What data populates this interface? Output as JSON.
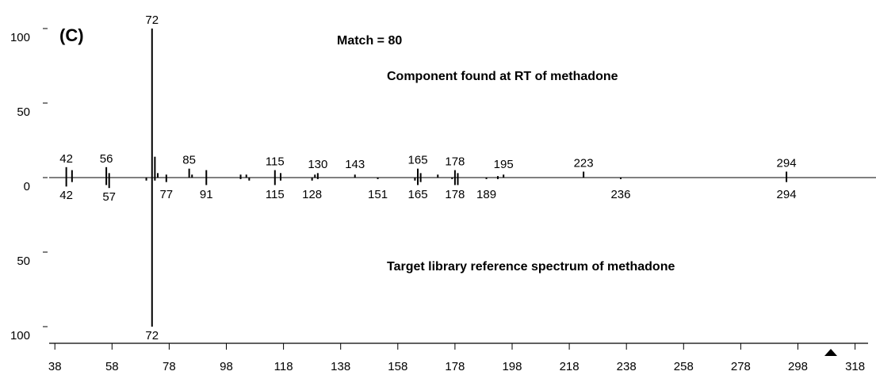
{
  "chart_data": {
    "type": "spectrum",
    "panel_label": "(C)",
    "annotations": [
      "Match = 80",
      "Component found at RT of methadone",
      "Target library reference spectrum of methadone"
    ],
    "xlim": [
      36,
      322
    ],
    "xticks": [
      38,
      58,
      78,
      98,
      118,
      138,
      158,
      178,
      198,
      218,
      238,
      258,
      278,
      298,
      318
    ],
    "ylim": [
      -100,
      100
    ],
    "yticks": [
      100,
      50,
      0,
      {
        "value": -50,
        "label": "50"
      },
      {
        "value": -100,
        "label": "100"
      }
    ],
    "color": "#000000",
    "series": [
      {
        "x": [
          42,
          44,
          56,
          57,
          72,
          73,
          74,
          77,
          85,
          86,
          91,
          103,
          105,
          115,
          117,
          129,
          130,
          143,
          165,
          166,
          172,
          178,
          179,
          193,
          195,
          223,
          294
        ],
        "values": [
          7,
          5,
          7,
          3,
          100,
          14,
          3,
          2,
          6,
          2,
          5,
          2,
          2,
          5,
          3,
          2,
          3,
          2,
          6,
          3,
          2,
          5,
          3,
          1,
          2,
          4,
          4
        ],
        "labels": [
          42,
          56,
          72,
          85,
          115,
          130,
          143,
          165,
          178,
          195,
          223,
          294
        ]
      },
      {
        "x": [
          42,
          44,
          56,
          57,
          70,
          72,
          73,
          77,
          91,
          103,
          106,
          115,
          117,
          128,
          130,
          151,
          164,
          165,
          166,
          177,
          178,
          179,
          189,
          193,
          236,
          294
        ],
        "values": [
          -6,
          -3,
          -5,
          -7,
          -2,
          -100,
          -2,
          -3,
          -5,
          -1,
          -2,
          -5,
          -2,
          -2,
          -1,
          -1,
          -2,
          -5,
          -3,
          -1,
          -5,
          -5,
          -1,
          -1,
          -1,
          -3
        ],
        "labels": [
          42,
          57,
          72,
          77,
          91,
          115,
          128,
          151,
          165,
          178,
          189,
          236,
          294
        ]
      }
    ]
  }
}
